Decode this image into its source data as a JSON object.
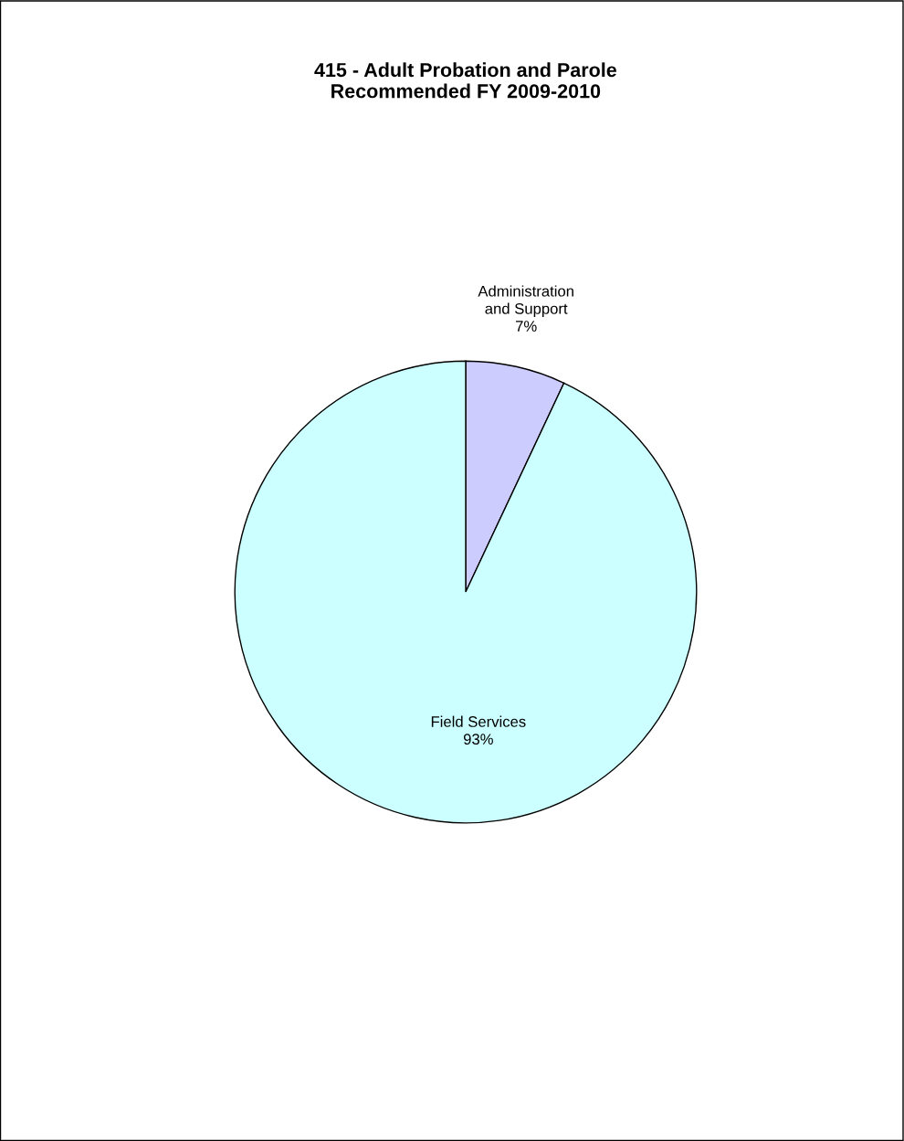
{
  "chart_data": {
    "type": "pie",
    "title": "415 - Adult Probation and Parole\nRecommended FY 2009-2010",
    "categories": [
      "Administration\nand Support",
      "Field Services"
    ],
    "values": [
      7,
      93
    ],
    "value_labels": [
      "7%",
      "93%"
    ],
    "colors": [
      "#ccccff",
      "#ccffff"
    ],
    "legend": false
  }
}
